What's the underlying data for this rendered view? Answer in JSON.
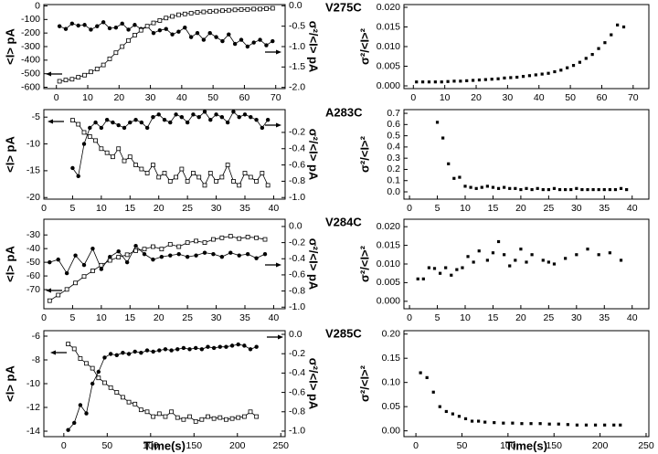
{
  "chart_data": [
    {
      "type": "line",
      "ylabel": "<I> pA",
      "y2label": "σ²/<I> pA",
      "xlim": [
        -4,
        73
      ],
      "xticks": [
        0,
        10,
        20,
        30,
        40,
        50,
        60,
        70
      ],
      "ylim": [
        -610,
        10
      ],
      "yticks": [
        -600,
        -500,
        -400,
        -300,
        -200,
        -100,
        0
      ],
      "y2lim": [
        -2.03,
        0.03
      ],
      "y2ticks": [
        {
          "value": -2,
          "label": "-2.0"
        },
        -1.5,
        {
          "value": -1,
          "label": "-1.0"
        },
        -0.5,
        {
          "value": 0,
          "label": "0.0"
        }
      ],
      "x": [
        1,
        3,
        5,
        7,
        9,
        11,
        13,
        15,
        17,
        19,
        21,
        23,
        25,
        27,
        29,
        31,
        33,
        35,
        37,
        39,
        41,
        43,
        45,
        47,
        49,
        51,
        53,
        55,
        57,
        59,
        61,
        63,
        65,
        67,
        69
      ],
      "series": [
        {
          "color": "#000000",
          "marker": "circle",
          "values": [
            -150,
            -170,
            -130,
            -145,
            -140,
            -175,
            -150,
            -120,
            -165,
            -160,
            -130,
            -175,
            -140,
            -170,
            -150,
            -200,
            -180,
            -170,
            -210,
            -190,
            -160,
            -230,
            -200,
            -250,
            -200,
            -230,
            -260,
            -210,
            -280,
            -250,
            -300,
            -270,
            -250,
            -290,
            -260
          ]
        },
        {
          "color": "#000000",
          "marker": "square",
          "axis": "y2",
          "values": [
            -1.85,
            -1.82,
            -1.8,
            -1.75,
            -1.7,
            -1.62,
            -1.55,
            -1.45,
            -1.3,
            -1.15,
            -1.0,
            -0.85,
            -0.72,
            -0.6,
            -0.5,
            -0.42,
            -0.36,
            -0.3,
            -0.26,
            -0.22,
            -0.2,
            -0.18,
            -0.16,
            -0.15,
            -0.14,
            -0.13,
            -0.12,
            -0.11,
            -0.1,
            -0.09,
            -0.09,
            -0.08,
            -0.08,
            -0.07,
            -0.06
          ]
        }
      ]
    },
    {
      "type": "scatter",
      "title": "V275C",
      "ylabel": "σ²/<I>²",
      "color": "#000000",
      "xlim": [
        -3,
        75
      ],
      "xticks": [
        0,
        10,
        20,
        30,
        40,
        50,
        60,
        70
      ],
      "ylim": [
        -0.0007,
        0.0207
      ],
      "yticks": [
        {
          "value": 0,
          "label": "0.000"
        },
        0.005,
        {
          "value": 0.01,
          "label": "0.010"
        },
        0.015,
        {
          "value": 0.02,
          "label": "0.020"
        }
      ],
      "x": [
        1,
        3,
        5,
        7,
        9,
        11,
        13,
        15,
        17,
        19,
        21,
        23,
        25,
        27,
        29,
        31,
        33,
        35,
        37,
        39,
        41,
        43,
        45,
        47,
        49,
        51,
        53,
        55,
        57,
        59,
        61,
        63,
        65,
        67
      ],
      "values": [
        0.001,
        0.001,
        0.001,
        0.001,
        0.001,
        0.0011,
        0.0012,
        0.0012,
        0.0013,
        0.0014,
        0.0015,
        0.0016,
        0.0017,
        0.0018,
        0.002,
        0.0021,
        0.0022,
        0.0024,
        0.0026,
        0.0028,
        0.003,
        0.0032,
        0.0036,
        0.004,
        0.0046,
        0.0052,
        0.006,
        0.007,
        0.008,
        0.0095,
        0.011,
        0.013,
        0.0155,
        0.015
      ]
    },
    {
      "type": "line",
      "ylabel": "<I> pA",
      "y2label": "σ²/<I> pA",
      "xlim": [
        0,
        42
      ],
      "xticks": [
        0,
        5,
        10,
        15,
        20,
        25,
        30,
        35,
        40
      ],
      "ylim": [
        -20.3,
        -3.6
      ],
      "yticks": [
        -20,
        -15,
        -10,
        -5
      ],
      "y2lim": [
        -1.02,
        0.08
      ],
      "y2ticks": [
        {
          "value": -1,
          "label": "-1.0"
        },
        -0.8,
        -0.6,
        -0.4,
        -0.2
      ],
      "x": [
        5,
        6,
        7,
        8,
        9,
        10,
        11,
        12,
        13,
        14,
        15,
        16,
        17,
        18,
        19,
        20,
        21,
        22,
        23,
        24,
        25,
        26,
        27,
        28,
        29,
        30,
        31,
        32,
        33,
        34,
        35,
        36,
        37,
        38,
        39
      ],
      "series": [
        {
          "color": "#000000",
          "marker": "circle",
          "values": [
            -14.5,
            -16,
            -10,
            -7,
            -6,
            -7,
            -5.5,
            -6,
            -6.5,
            -7,
            -6,
            -5.5,
            -6,
            -7,
            -5,
            -4.5,
            -5.5,
            -6,
            -4.5,
            -5,
            -6,
            -4.5,
            -5,
            -4,
            -5.5,
            -4.5,
            -5,
            -6,
            -4,
            -5,
            -4.5,
            -5,
            -5.5,
            -7,
            -5.5
          ]
        },
        {
          "color": "#000000",
          "marker": "square",
          "axis": "y2",
          "values": [
            -0.05,
            -0.1,
            -0.2,
            -0.25,
            -0.3,
            -0.4,
            -0.45,
            -0.5,
            -0.4,
            -0.55,
            -0.5,
            -0.6,
            -0.65,
            -0.7,
            -0.6,
            -0.75,
            -0.7,
            -0.8,
            -0.75,
            -0.65,
            -0.8,
            -0.7,
            -0.75,
            -0.85,
            -0.7,
            -0.8,
            -0.75,
            -0.6,
            -0.8,
            -0.85,
            -0.7,
            -0.75,
            -0.8,
            -0.7,
            -0.85
          ]
        }
      ]
    },
    {
      "type": "scatter",
      "title": "A283C",
      "ylabel": "σ²/<I>²",
      "color": "#000000",
      "xlim": [
        -1,
        43
      ],
      "xticks": [
        0,
        5,
        10,
        15,
        20,
        25,
        30,
        35,
        40
      ],
      "ylim": [
        -0.065,
        0.733
      ],
      "yticks": [
        {
          "value": 0,
          "label": "0.0"
        },
        0.1,
        0.2,
        0.3,
        0.4,
        0.5,
        0.6,
        0.7
      ],
      "x": [
        5,
        6,
        7,
        8,
        9,
        10,
        11,
        12,
        13,
        14,
        15,
        16,
        17,
        18,
        19,
        20,
        21,
        22,
        23,
        24,
        25,
        26,
        27,
        28,
        29,
        30,
        31,
        32,
        33,
        34,
        35,
        36,
        37,
        38,
        39
      ],
      "values": [
        0.62,
        0.48,
        0.25,
        0.12,
        0.13,
        0.05,
        0.04,
        0.03,
        0.04,
        0.05,
        0.04,
        0.03,
        0.04,
        0.03,
        0.03,
        0.02,
        0.03,
        0.02,
        0.03,
        0.02,
        0.02,
        0.03,
        0.02,
        0.02,
        0.02,
        0.03,
        0.02,
        0.02,
        0.02,
        0.02,
        0.02,
        0.02,
        0.02,
        0.03,
        0.02
      ]
    },
    {
      "type": "line",
      "ylabel": "<I> pA",
      "y2label": "σ²/<I> pA",
      "xlim": [
        0,
        42
      ],
      "xticks": [
        0,
        5,
        10,
        15,
        20,
        25,
        30,
        35,
        40
      ],
      "ylim": [
        -84,
        -18.5
      ],
      "yticks": [
        -70,
        -60,
        -50,
        -40,
        -30
      ],
      "y2lim": [
        -1.02,
        0.09
      ],
      "y2ticks": [
        {
          "value": -1,
          "label": "-1.0"
        },
        -0.8,
        -0.6,
        -0.4,
        -0.2,
        {
          "value": 0,
          "label": "0.0"
        }
      ],
      "x": [
        1,
        2.5,
        4,
        5.5,
        7,
        8.5,
        10,
        11.5,
        13,
        14.5,
        16,
        17.5,
        19,
        20.5,
        22,
        23.5,
        25,
        26.5,
        28,
        29.5,
        31,
        32.5,
        34,
        35.5,
        37,
        38.5
      ],
      "series": [
        {
          "color": "#000000",
          "marker": "circle",
          "values": [
            -50,
            -48,
            -58,
            -45,
            -52,
            -40,
            -55,
            -46,
            -42,
            -50,
            -38,
            -44,
            -48,
            -46,
            -45,
            -44,
            -46,
            -45,
            -43,
            -44,
            -46,
            -43,
            -45,
            -44,
            -47,
            -44
          ]
        },
        {
          "color": "#000000",
          "marker": "square",
          "axis": "y2",
          "values": [
            -0.92,
            -0.85,
            -0.78,
            -0.7,
            -0.62,
            -0.55,
            -0.48,
            -0.42,
            -0.38,
            -0.35,
            -0.3,
            -0.28,
            -0.25,
            -0.28,
            -0.22,
            -0.25,
            -0.2,
            -0.18,
            -0.2,
            -0.16,
            -0.14,
            -0.12,
            -0.15,
            -0.13,
            -0.14,
            -0.16
          ]
        }
      ]
    },
    {
      "type": "scatter",
      "title": "V284C",
      "ylabel": "σ²/<I>²",
      "color": "#000000",
      "xlim": [
        -1,
        43
      ],
      "xticks": [
        0,
        5,
        10,
        15,
        20,
        25,
        30,
        35,
        40
      ],
      "ylim": [
        -0.002,
        0.022
      ],
      "yticks": [
        {
          "value": 0,
          "label": "0.000"
        },
        0.005,
        {
          "value": 0.01,
          "label": "0.010"
        },
        0.015,
        {
          "value": 0.02,
          "label": "0.020"
        }
      ],
      "x": [
        1.5,
        2.5,
        3.5,
        4.5,
        5.5,
        6.5,
        7.5,
        8.5,
        9.5,
        10.5,
        11.5,
        12.5,
        14,
        15,
        16,
        17,
        18,
        19,
        20,
        21,
        22,
        24,
        25,
        26,
        28,
        30,
        32,
        34,
        36,
        38
      ],
      "values": [
        0.006,
        0.006,
        0.009,
        0.0088,
        0.0075,
        0.009,
        0.007,
        0.0085,
        0.009,
        0.012,
        0.0105,
        0.0135,
        0.011,
        0.013,
        0.016,
        0.0125,
        0.0095,
        0.011,
        0.014,
        0.0105,
        0.0125,
        0.011,
        0.0105,
        0.01,
        0.0115,
        0.0125,
        0.014,
        0.0125,
        0.013,
        0.011
      ]
    },
    {
      "type": "line",
      "ylabel": "<I> pA",
      "y2label": "σ²/<I> pA",
      "xlabel": "Time(s)",
      "xlim": [
        -23,
        255
      ],
      "xticks": [
        0,
        50,
        100,
        150,
        200,
        250
      ],
      "ylim": [
        -14.46,
        -5.54
      ],
      "yticks": [
        -14,
        -12,
        -10,
        -8,
        -6
      ],
      "y2lim": [
        -1.057,
        0.038
      ],
      "y2ticks": [
        {
          "value": -1,
          "label": "-1.0"
        },
        -0.8,
        -0.6,
        -0.4,
        -0.2,
        {
          "value": 0,
          "label": "0.0"
        }
      ],
      "x": [
        5,
        12,
        19,
        26,
        33,
        40,
        47,
        54,
        61,
        68,
        75,
        82,
        89,
        96,
        103,
        110,
        117,
        124,
        131,
        138,
        145,
        152,
        159,
        166,
        173,
        180,
        187,
        194,
        201,
        208,
        215,
        222
      ],
      "series": [
        {
          "color": "#000000",
          "marker": "circle",
          "values": [
            -13.9,
            -13.3,
            -11.8,
            -12.5,
            -10,
            -9,
            -7.8,
            -7.5,
            -7.6,
            -7.4,
            -7.5,
            -7.3,
            -7.4,
            -7.2,
            -7.3,
            -7.2,
            -7.1,
            -7.2,
            -7.1,
            -7.0,
            -7.1,
            -7.0,
            -7.1,
            -6.9,
            -7.0,
            -6.9,
            -6.9,
            -6.8,
            -6.7,
            -6.8,
            -7.1,
            -6.9
          ]
        },
        {
          "color": "#000000",
          "marker": "square",
          "axis": "y2",
          "values": [
            -0.1,
            -0.15,
            -0.25,
            -0.3,
            -0.35,
            -0.45,
            -0.5,
            -0.55,
            -0.6,
            -0.65,
            -0.7,
            -0.72,
            -0.78,
            -0.8,
            -0.85,
            -0.82,
            -0.85,
            -0.8,
            -0.86,
            -0.88,
            -0.85,
            -0.9,
            -0.88,
            -0.85,
            -0.87,
            -0.86,
            -0.88,
            -0.87,
            -0.86,
            -0.85,
            -0.8,
            -0.85
          ]
        }
      ]
    },
    {
      "type": "scatter",
      "title": "V285C",
      "ylabel": "σ²/<I>²",
      "xlabel": "Time(s)",
      "color": "#000000",
      "xlim": [
        -13,
        253
      ],
      "xticks": [
        0,
        50,
        100,
        150,
        200,
        250
      ],
      "ylim": [
        -0.012,
        0.207
      ],
      "yticks": [
        {
          "value": 0,
          "label": "0.00"
        },
        0.05,
        {
          "value": 0.1,
          "label": "0.10"
        },
        0.15,
        {
          "value": 0.2,
          "label": "0.20"
        }
      ],
      "x": [
        5,
        12,
        19,
        26,
        33,
        40,
        47,
        54,
        61,
        68,
        75,
        85,
        95,
        105,
        115,
        125,
        135,
        145,
        155,
        165,
        175,
        185,
        195,
        205,
        215,
        222
      ],
      "values": [
        0.12,
        0.11,
        0.08,
        0.05,
        0.04,
        0.035,
        0.03,
        0.025,
        0.02,
        0.02,
        0.018,
        0.017,
        0.016,
        0.016,
        0.015,
        0.015,
        0.015,
        0.014,
        0.014,
        0.013,
        0.012,
        0.012,
        0.012,
        0.012,
        0.012,
        0.012
      ]
    }
  ]
}
